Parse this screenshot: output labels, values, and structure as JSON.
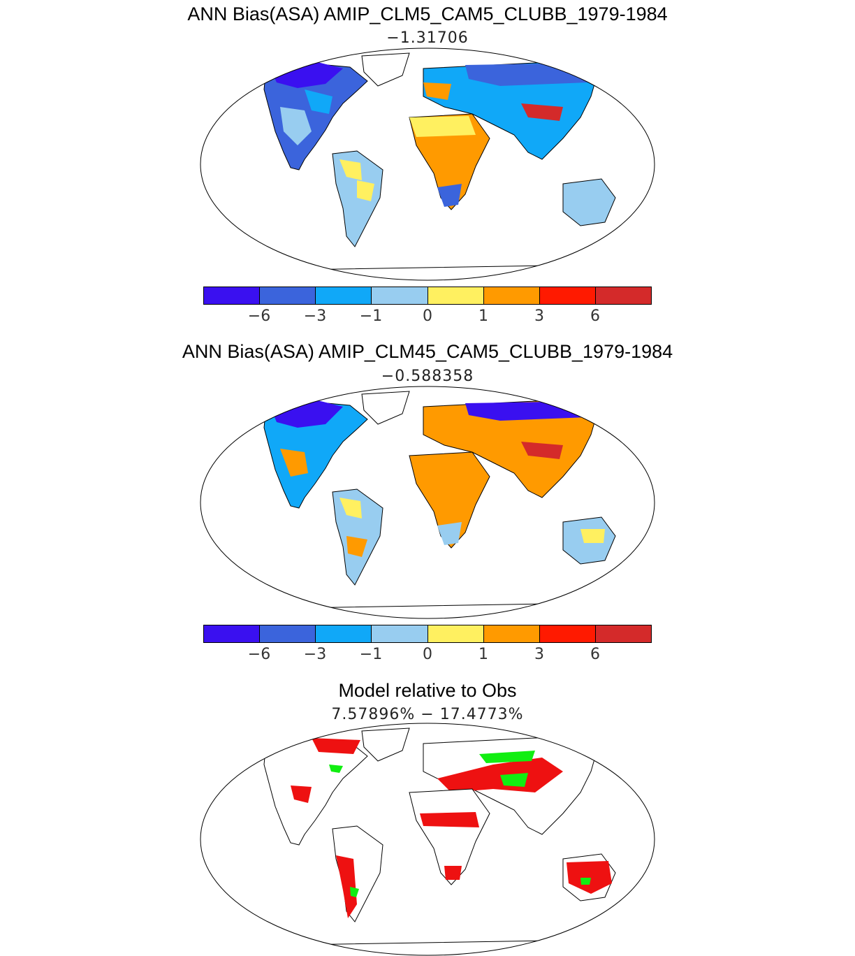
{
  "panels": [
    {
      "title": "ANN Bias(ASA) AMIP_CLM5_CAM5_CLUBB_1979-1984",
      "subtitle": "−1.31706"
    },
    {
      "title": "ANN Bias(ASA) AMIP_CLM45_CAM5_CLUBB_1979-1984",
      "subtitle": "−0.588358"
    },
    {
      "title": "Model relative to Obs",
      "subtitle": "7.57896% − 17.4773%"
    }
  ],
  "colorbar": {
    "colors": [
      "#3a10f0",
      "#3b64dc",
      "#10a8f8",
      "#98cdf0",
      "#fff060",
      "#ff9a00",
      "#ff1a00",
      "#d42a2a"
    ],
    "ticks": [
      "−6",
      "−3",
      "−1",
      "0",
      "1",
      "3",
      "6"
    ]
  },
  "legend_colors": {
    "worse": "#ee1111",
    "better": "#11ee11",
    "coast": "#000000"
  }
}
